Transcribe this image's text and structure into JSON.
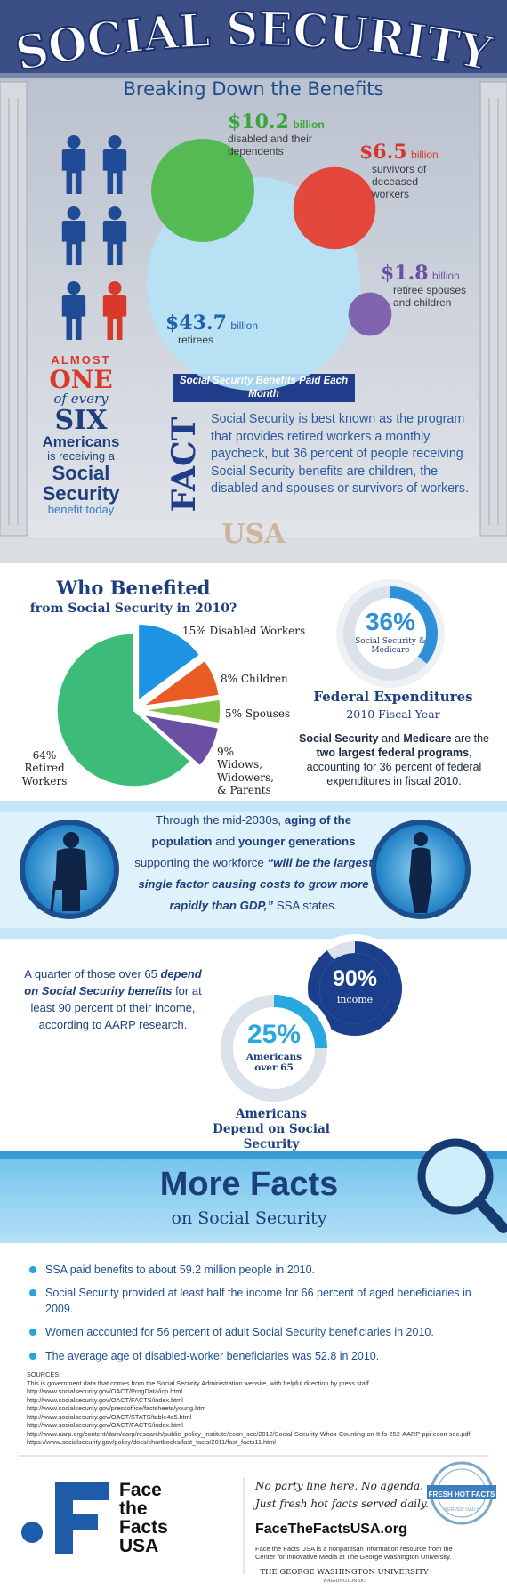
{
  "header": {
    "title": "SOCIAL SECURITY",
    "subtitle": "Breaking Down the Benefits",
    "side": [
      "ALMOST",
      "ONE",
      "of every",
      "SIX",
      "Americans",
      "is receiving a",
      "Social",
      "Security",
      "benefit today"
    ],
    "fact_label": "FACT",
    "fact_text": "Social Security is best known as the program that provides retired workers a monthly paycheck, but 36 percent of people receiving Social Security benefits are children, the disabled and spouses or survivors of workers.",
    "stamp": "USA"
  },
  "chart_data": [
    {
      "type": "bubble",
      "title": "Social Security Benefits Paid Each Month",
      "categories": [
        "disabled and their dependents",
        "survivors of deceased workers",
        "retiree spouses and children",
        "retirees"
      ],
      "values": [
        10.2,
        6.5,
        1.8,
        43.7
      ],
      "value_labels": [
        "$10.2",
        "$6.5",
        "$1.8",
        "$43.7"
      ],
      "unit": "billion",
      "colors": [
        "#4cb848",
        "#e63b2e",
        "#7a5aa8",
        "#b6e3f6"
      ]
    },
    {
      "type": "pie",
      "title": "Who Benefited",
      "subtitle": "from Social Security in 2010?",
      "categories": [
        "Disabled Workers",
        "Children",
        "Spouses",
        "Widows, Widowers, & Parents",
        "Retired Workers"
      ],
      "values": [
        15,
        8,
        5,
        9,
        64
      ],
      "value_labels": [
        "15%",
        "8%",
        "5%",
        "9%",
        "64%"
      ],
      "colors": [
        "#1f93e3",
        "#ea5b24",
        "#7dc242",
        "#6b4fa3",
        "#3dbb78"
      ]
    },
    {
      "type": "donut",
      "title": "Federal Expenditures",
      "subtitle": "2010 Fiscal Year",
      "categories": [
        "Social Security & Medicare"
      ],
      "values": [
        36
      ],
      "value_labels": [
        "36%"
      ],
      "colors": [
        "#2f8fd8"
      ]
    },
    {
      "type": "donut",
      "title": "Americans Depend on Social Security",
      "categories": [
        "income",
        "Americans over 65"
      ],
      "values": [
        90,
        25
      ],
      "value_labels": [
        "90%",
        "25%"
      ],
      "colors": [
        "#1b3f8a",
        "#29a8e0"
      ]
    }
  ],
  "expenditure_text": [
    "Social Security",
    " and ",
    "Medicare",
    " are the ",
    "two largest federal programs",
    ", accounting for 36 percent of federal expenditures in fiscal 2010."
  ],
  "quote": [
    "Through the mid-2030s, ",
    "aging of the population",
    " and ",
    "younger generations",
    " supporting the workforce ",
    "“will be the largest single factor causing costs to grow more rapidly than GDP,”",
    " SSA states."
  ],
  "aarp_text": [
    "A quarter of those over 65 ",
    "depend on Social Security benefits",
    " for at least 90 percent of their income, according to AARP research."
  ],
  "more_facts": {
    "title": "More Facts",
    "subtitle": "on Social Security",
    "bullets": [
      "SSA paid benefits to about 59.2 million people in 2010.",
      "Social Security provided at least half the income for 66 percent of aged beneficiaries in 2009.",
      "Women accounted for 56 percent of adult Social Security beneficiaries in 2010.",
      "The average age of disabled-worker beneficiaries was 52.8 in 2010."
    ]
  },
  "sources": {
    "label": "SOURCES:",
    "note": "This is government data that comes from the Social Security Administration website, with helpful direction by press staff.",
    "urls": [
      "http://www.socialsecurity.gov/OACT/ProgData/icp.html",
      "http://www.socialsecurity.gov/OACT/FACTS/index.html",
      "http://www.socialsecurity.gov/pressoffice/factsheets/young.htm",
      "http://www.socialsecurity.gov/OACT/STATS/table4a5.html",
      "http://www.socialsecurity.gov/OACT/FACTS/index.html",
      "http://www.aarp.org/content/dam/aarp/research/public_policy_institute/econ_sec/2012/Social-Security-Whos-Counting-on-It-fs-252-AARP-ppi-econ-sec.pdf",
      "https://www.socialsecurity.gov/policy/docs/chartbooks/fast_facts/2011/fast_facts11.html"
    ]
  },
  "footer": {
    "logo": [
      "Face",
      "the",
      "Facts",
      "USA"
    ],
    "tagline": [
      "No party line here. No agenda.",
      "Just fresh hot facts served daily."
    ],
    "url": "FaceTheFactsUSA.org",
    "about": "Face the Facts USA is a nonpartisan information resource from the Center for Innovative Media at The George Washington University.",
    "university": "THE GEORGE WASHINGTON UNIVERSITY",
    "city": "WASHINGTON DC",
    "badge": "FRESH HOT FACTS",
    "badge_small": "SERVED DAILY"
  }
}
